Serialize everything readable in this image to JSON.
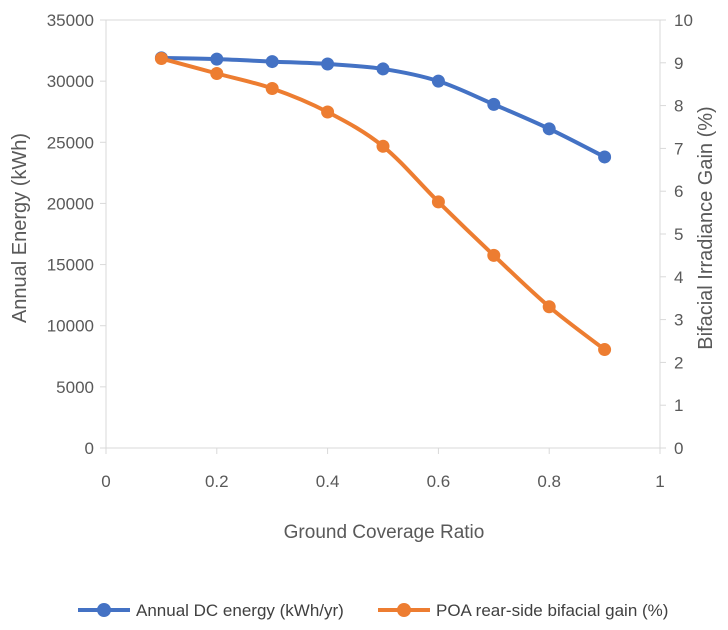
{
  "chart_data": {
    "type": "line",
    "xlabel": "Ground Coverage Ratio",
    "ylabel": "Annual Energy (kWh)",
    "y2label": "Bifacial Irradiance Gain (%)",
    "xlim": [
      0,
      1
    ],
    "ylim": [
      0,
      35000
    ],
    "y2lim": [
      0,
      10
    ],
    "x_ticks": [
      "0",
      "0.2",
      "0.4",
      "0.6",
      "0.8",
      "1"
    ],
    "y_ticks": [
      "0",
      "5000",
      "10000",
      "15000",
      "20000",
      "25000",
      "30000",
      "35000"
    ],
    "y2_ticks": [
      "0",
      "1",
      "2",
      "3",
      "4",
      "5",
      "6",
      "7",
      "8",
      "9",
      "10"
    ],
    "grid": false,
    "legend_position": "bottom",
    "series": [
      {
        "name": "Annual DC energy (kWh/yr)",
        "axis": "left",
        "color": "#4472C4",
        "x": [
          0.1,
          0.2,
          0.3,
          0.4,
          0.5,
          0.6,
          0.7,
          0.8,
          0.9
        ],
        "values": [
          31900,
          31800,
          31600,
          31400,
          31000,
          30000,
          28100,
          26100,
          23800
        ]
      },
      {
        "name": "POA rear-side bifacial gain (%)",
        "axis": "right",
        "color": "#ED7D31",
        "x": [
          0.1,
          0.2,
          0.3,
          0.4,
          0.5,
          0.6,
          0.7,
          0.8,
          0.9
        ],
        "values": [
          9.1,
          8.75,
          8.4,
          7.85,
          7.05,
          5.75,
          4.5,
          3.3,
          2.3
        ]
      }
    ]
  }
}
